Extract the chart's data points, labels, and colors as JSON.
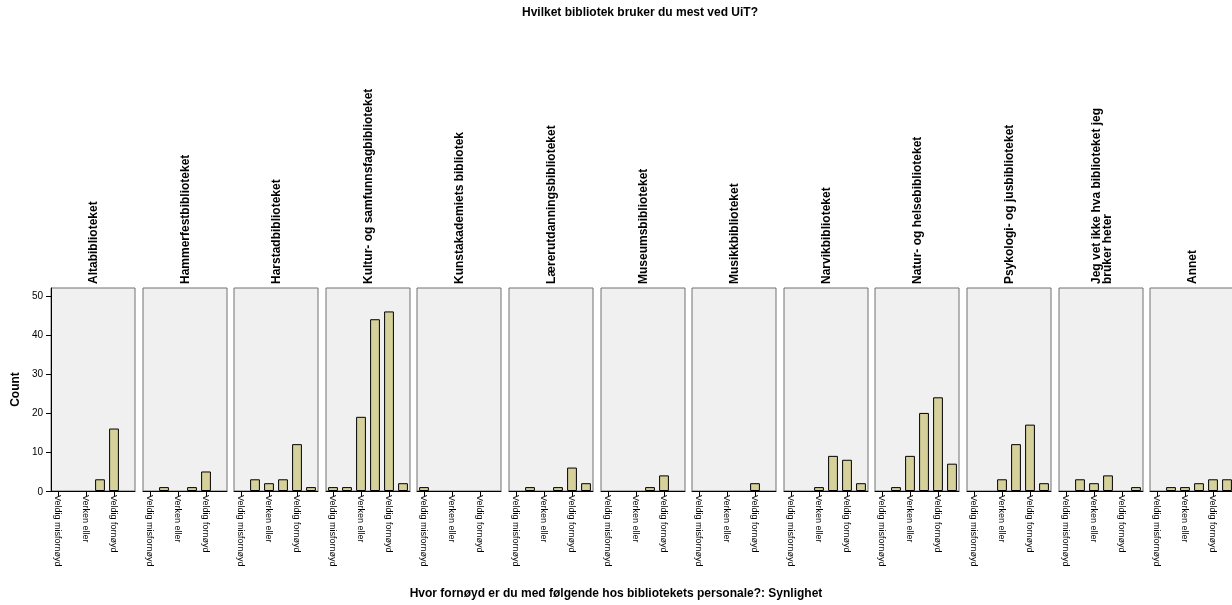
{
  "chart_data": [
    {
      "type": "bar",
      "title": "Altabiblioteket",
      "ylabel": "Count",
      "categories": [
        "Veldig misfornøyd",
        null,
        "Verken eller",
        null,
        "Veldig fornøyd",
        null
      ],
      "values": [
        0,
        0,
        0,
        3,
        16,
        0
      ],
      "color": "#d6d19a",
      "ylim": [
        0,
        52
      ],
      "yticks": [
        0,
        10,
        20,
        30,
        40,
        50
      ]
    },
    {
      "type": "bar",
      "title": "Hammerfestbiblioteket",
      "categories": [
        "Veldig misfornøyd",
        null,
        "Verken eller",
        null,
        "Veldig fornøyd",
        null
      ],
      "values": [
        0,
        1,
        0,
        1,
        5,
        0
      ],
      "color": "#d6d19a",
      "ylim": [
        0,
        52
      ],
      "yticks": [
        0,
        10,
        20,
        30,
        40,
        50
      ],
      "tick_labels": "x"
    },
    {
      "type": "bar",
      "title": "Harstadbiblioteket",
      "categories": [
        "Veldig misfornøyd",
        null,
        "Verken eller",
        null,
        "Veldig fornøyd",
        null
      ],
      "values": [
        0,
        3,
        2,
        3,
        12,
        1
      ],
      "color": "#d6d19a",
      "ylim": [
        0,
        52
      ],
      "yticks": [
        0,
        10,
        20,
        30,
        40,
        50
      ],
      "tick_labels": "x"
    },
    {
      "type": "bar",
      "title": "Kultur- og samfunnsfagbiblioteket",
      "categories": [
        "Veldig misfornøyd",
        null,
        "Verken eller",
        null,
        "Veldig fornøyd",
        null
      ],
      "values": [
        1,
        1,
        19,
        44,
        46,
        2
      ],
      "color": "#d6d19a",
      "ylim": [
        0,
        52
      ],
      "yticks": [
        0,
        10,
        20,
        30,
        40,
        50
      ],
      "tick_labels": "x"
    },
    {
      "type": "bar",
      "title": "Kunstakademiets bibliotek",
      "categories": [
        "Veldig misfornøyd",
        null,
        "Verken eller",
        null,
        "Veldig fornøyd",
        null
      ],
      "values": [
        1,
        0,
        0,
        0,
        0,
        0
      ],
      "color": "#d6d19a",
      "ylim": [
        0,
        52
      ],
      "yticks": [
        0,
        10,
        20,
        30,
        40,
        50
      ],
      "tick_labels": "x"
    },
    {
      "type": "bar",
      "title": "Lærerutdanningsbiblioteket",
      "categories": [
        "Veldig misfornøyd",
        null,
        "Verken eller",
        null,
        "Veldig fornøyd",
        null
      ],
      "values": [
        0,
        1,
        0,
        1,
        6,
        2
      ],
      "color": "#d6d19a",
      "ylim": [
        0,
        52
      ],
      "yticks": [
        0,
        10,
        20,
        30,
        40,
        50
      ],
      "tick_labels": "x"
    },
    {
      "type": "bar",
      "title": "Museumsbiblioteket",
      "annotations": [
        "Hvilket bibliotek bruker du mest ved UiT?"
      ],
      "xlabel": "Hvor fornøyd er du med følgende hos bibliotekets personale?: Synlighet",
      "categories": [
        "Veldig misfornøyd",
        null,
        "Verken eller",
        null,
        "Veldig fornøyd",
        null
      ],
      "values": [
        0,
        0,
        0,
        1,
        4,
        0
      ],
      "color": "#d6d19a",
      "ylim": [
        0,
        52
      ],
      "yticks": [
        0,
        10,
        20,
        30,
        40,
        50
      ],
      "tick_labels": "x"
    },
    {
      "type": "bar",
      "title": "Musikkbiblioteket",
      "categories": [
        "Veldig misfornøyd",
        null,
        "Verken eller",
        null,
        "Veldig fornøyd",
        null
      ],
      "values": [
        0,
        0,
        0,
        0,
        2,
        0
      ],
      "color": "#d6d19a",
      "ylim": [
        0,
        52
      ],
      "yticks": [
        0,
        10,
        20,
        30,
        40,
        50
      ],
      "tick_labels": "x"
    },
    {
      "type": "bar",
      "title": "Narvikbiblioteket",
      "categories": [
        "Veldig misfornøyd",
        null,
        "Verken eller",
        null,
        "Veldig fornøyd",
        null
      ],
      "values": [
        0,
        0,
        1,
        9,
        8,
        2
      ],
      "color": "#d6d19a",
      "ylim": [
        0,
        52
      ],
      "yticks": [
        0,
        10,
        20,
        30,
        40,
        50
      ],
      "tick_labels": "x"
    },
    {
      "type": "bar",
      "title": "Natur- og helsebiblioteket",
      "categories": [
        "Veldig misfornøyd",
        null,
        "Verken eller",
        null,
        "Veldig fornøyd",
        null
      ],
      "values": [
        0,
        1,
        9,
        20,
        24,
        7
      ],
      "color": "#d6d19a",
      "ylim": [
        0,
        52
      ],
      "yticks": [
        0,
        10,
        20,
        30,
        40,
        50
      ],
      "tick_labels": "x"
    },
    {
      "type": "bar",
      "title": "Psykologi- og jusbiblioteket",
      "categories": [
        "Veldig misfornøyd",
        null,
        "Verken eller",
        null,
        "Veldig fornøyd",
        null
      ],
      "values": [
        0,
        0,
        3,
        12,
        17,
        2
      ],
      "color": "#d6d19a",
      "ylim": [
        0,
        52
      ],
      "yticks": [
        0,
        10,
        20,
        30,
        40,
        50
      ],
      "tick_labels": "x"
    },
    {
      "type": "bar",
      "title": "Jeg vet ikke hva biblioteket jeg bruker heter",
      "categories": [
        "Veldig misfornøyd",
        null,
        "Verken eller",
        null,
        "Veldig fornøyd",
        null
      ],
      "values": [
        0,
        3,
        2,
        4,
        0,
        1
      ],
      "color": "#d6d19a",
      "ylim": [
        0,
        52
      ],
      "yticks": [
        0,
        10,
        20,
        30,
        40,
        50
      ],
      "tick_labels": "x"
    },
    {
      "type": "bar",
      "title": "Annet",
      "categories": [
        "Veldig misfornøyd",
        null,
        "Verken eller",
        null,
        "Veldig fornøyd",
        null
      ],
      "values": [
        0,
        1,
        1,
        2,
        3,
        3
      ],
      "color": "#d6d19a",
      "ylim": [
        0,
        52
      ],
      "yticks": [
        0,
        10,
        20,
        30,
        40,
        50
      ],
      "tick_labels": "x"
    }
  ]
}
